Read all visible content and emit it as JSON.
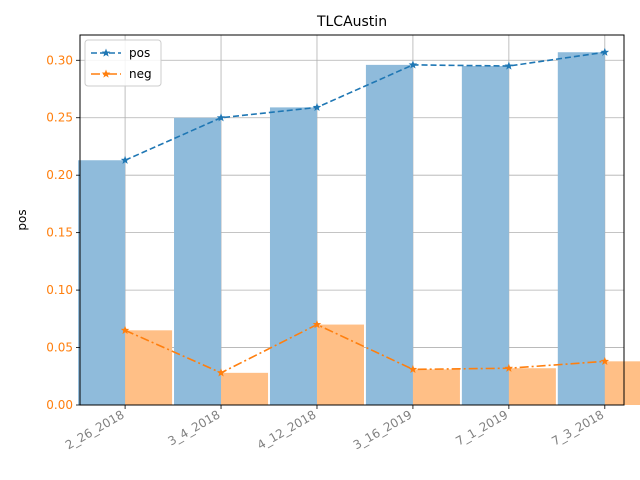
{
  "chart_data": {
    "type": "bar",
    "title": "TLCAustin",
    "xlabel": "",
    "ylabel": "pos",
    "ylim": [
      0,
      0.322
    ],
    "yticks": [
      "0.00",
      "0.05",
      "0.10",
      "0.15",
      "0.20",
      "0.25",
      "0.30"
    ],
    "categories": [
      "2_26_2018",
      "3_4_2018",
      "4_12_2018",
      "3_16_2019",
      "7_1_2019",
      "7_3_2018"
    ],
    "grid": true,
    "legend_position": "top-left",
    "series": [
      {
        "name": "pos",
        "values": [
          0.213,
          0.25,
          0.259,
          0.296,
          0.295,
          0.307
        ],
        "color": "#1f77b4",
        "bar_color": "#8fbbdb",
        "line_style": "dashed",
        "marker": "star"
      },
      {
        "name": "neg",
        "values": [
          0.065,
          0.028,
          0.07,
          0.031,
          0.032,
          0.038
        ],
        "color": "#ff7f0e",
        "bar_color": "#ffbf86",
        "line_style": "dash-dot",
        "marker": "star"
      }
    ]
  }
}
